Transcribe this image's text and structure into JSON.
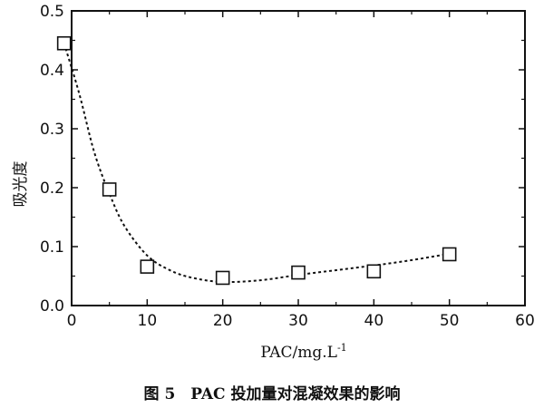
{
  "chart_data": {
    "type": "scatter",
    "xlabel": "PAC/mg.L",
    "xlabel_sup": "-1",
    "ylabel": "吸光度",
    "caption": "图 5　PAC 投加量对混凝效果的影响",
    "xlim": [
      0,
      60
    ],
    "ylim": [
      0.0,
      0.5
    ],
    "x_ticks": [
      0,
      10,
      20,
      30,
      40,
      50,
      60
    ],
    "y_ticks": [
      0.0,
      0.1,
      0.2,
      0.3,
      0.4,
      0.5
    ],
    "x_tick_labels": [
      "0",
      "10",
      "20",
      "30",
      "40",
      "50",
      "60"
    ],
    "y_tick_labels": [
      "0.0",
      "0.1",
      "0.2",
      "0.3",
      "0.4",
      "0.5"
    ],
    "points": [
      {
        "x": -1,
        "y": 0.445
      },
      {
        "x": 5,
        "y": 0.197
      },
      {
        "x": 10,
        "y": 0.066
      },
      {
        "x": 20,
        "y": 0.047
      },
      {
        "x": 30,
        "y": 0.056
      },
      {
        "x": 40,
        "y": 0.058
      },
      {
        "x": 50,
        "y": 0.087
      }
    ],
    "fit_curve": [
      {
        "x": -1,
        "y": 0.445
      },
      {
        "x": 1,
        "y": 0.36
      },
      {
        "x": 3,
        "y": 0.26
      },
      {
        "x": 5,
        "y": 0.19
      },
      {
        "x": 7,
        "y": 0.135
      },
      {
        "x": 10,
        "y": 0.085
      },
      {
        "x": 13,
        "y": 0.06
      },
      {
        "x": 16,
        "y": 0.047
      },
      {
        "x": 20,
        "y": 0.04
      },
      {
        "x": 25,
        "y": 0.043
      },
      {
        "x": 30,
        "y": 0.052
      },
      {
        "x": 35,
        "y": 0.06
      },
      {
        "x": 40,
        "y": 0.068
      },
      {
        "x": 45,
        "y": 0.077
      },
      {
        "x": 50,
        "y": 0.088
      }
    ],
    "marker": "open-square",
    "line_style": "dotted",
    "grid": false,
    "legend": "none",
    "colors": {
      "marker": "#111111",
      "curve": "#111111",
      "axis": "#111111"
    }
  }
}
